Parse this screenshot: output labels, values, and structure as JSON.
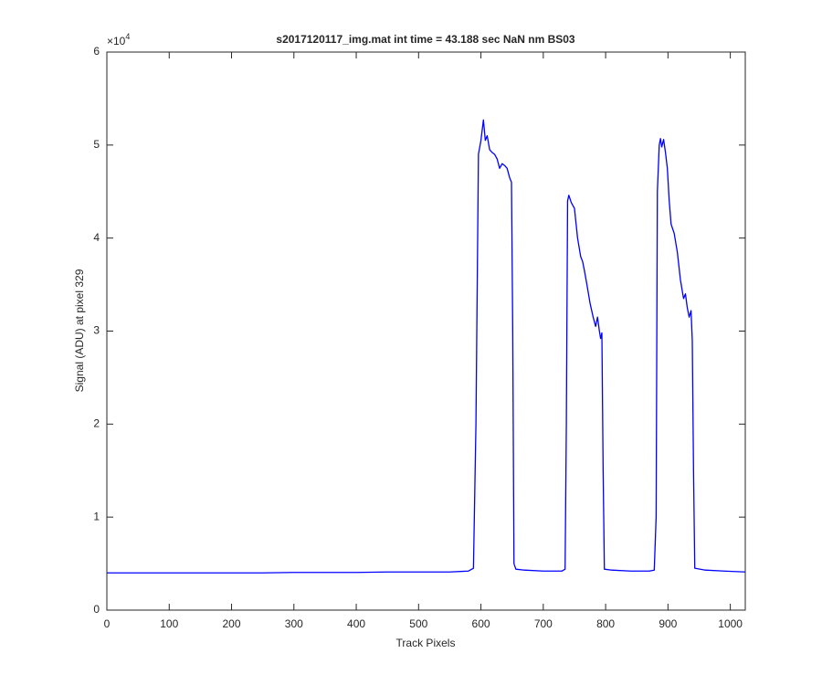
{
  "chart_data": {
    "type": "line",
    "title": "s2017120117_img.mat int time = 43.188 sec  NaN nm BS03",
    "x_label": "Track Pixels",
    "y_label": "Signal (ADU) at pixel 329",
    "y_multiplier": {
      "base": "×10",
      "exponent": "4"
    },
    "x": [
      0,
      50,
      100,
      150,
      200,
      250,
      300,
      350,
      400,
      450,
      500,
      550,
      580,
      588,
      592,
      596,
      600,
      604,
      607,
      610,
      614,
      618,
      622,
      626,
      630,
      634,
      638,
      642,
      646,
      649,
      651,
      653,
      656,
      670,
      700,
      730,
      735,
      737,
      739,
      741,
      745,
      750,
      755,
      760,
      763,
      766,
      770,
      775,
      780,
      784,
      787,
      790,
      792,
      794,
      796,
      798,
      810,
      840,
      870,
      878,
      881,
      883,
      886,
      888,
      890,
      893,
      896,
      899,
      902,
      905,
      910,
      915,
      920,
      925,
      928,
      931,
      934,
      937,
      939,
      941,
      943,
      960,
      990,
      1024
    ],
    "series": [
      {
        "name": "Signal",
        "color": "#0000ff",
        "values": [
          4000,
          4000,
          4000,
          4000,
          4000,
          4000,
          4050,
          4050,
          4050,
          4100,
          4100,
          4100,
          4200,
          4500,
          20000,
          49000,
          50500,
          52700,
          50500,
          51000,
          49500,
          49200,
          49000,
          48500,
          47500,
          48000,
          47800,
          47500,
          46500,
          46000,
          30000,
          5000,
          4400,
          4300,
          4200,
          4200,
          4400,
          20000,
          44000,
          44600,
          43800,
          43200,
          40000,
          38000,
          37500,
          36500,
          35000,
          33000,
          31500,
          30500,
          31500,
          30000,
          29200,
          29800,
          15000,
          4400,
          4300,
          4200,
          4200,
          4300,
          10000,
          45000,
          50000,
          50700,
          49800,
          50600,
          49200,
          47500,
          44000,
          41500,
          40500,
          38500,
          35500,
          33500,
          34000,
          32500,
          31500,
          32200,
          29000,
          15000,
          4500,
          4300,
          4200,
          4100
        ]
      }
    ],
    "xlim": [
      0,
      1024
    ],
    "xticks": [
      0,
      100,
      200,
      300,
      400,
      500,
      600,
      700,
      800,
      900,
      1000
    ],
    "ylim": [
      0,
      60000
    ],
    "yticks": [
      {
        "value": 0,
        "label": "0"
      },
      {
        "value": 10000,
        "label": "1"
      },
      {
        "value": 20000,
        "label": "2"
      },
      {
        "value": 30000,
        "label": "3"
      },
      {
        "value": 40000,
        "label": "4"
      },
      {
        "value": 50000,
        "label": "5"
      },
      {
        "value": 60000,
        "label": "6"
      }
    ],
    "grid": false
  }
}
